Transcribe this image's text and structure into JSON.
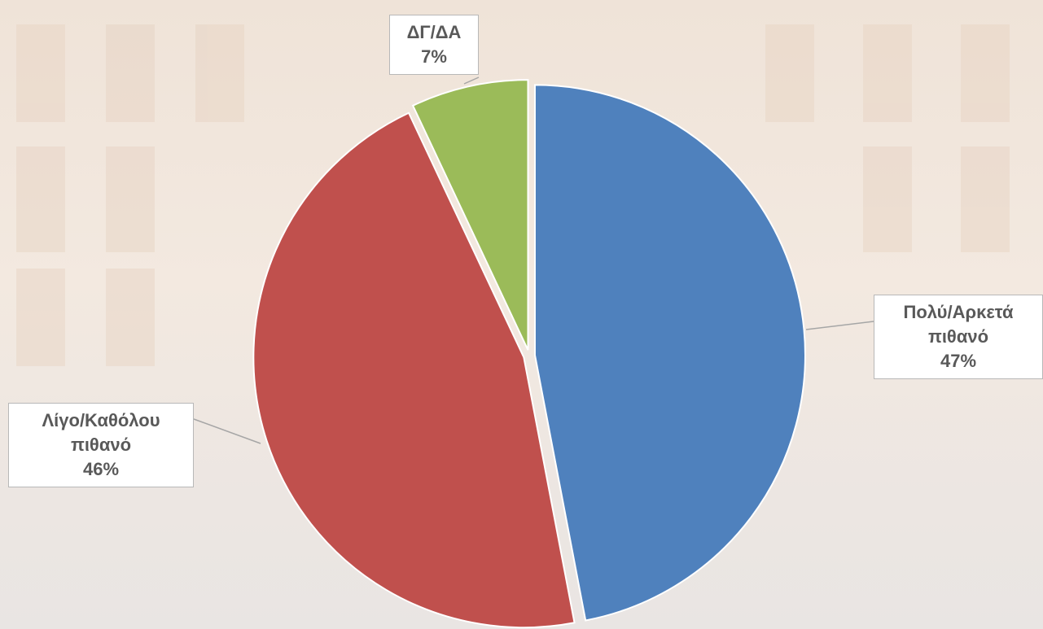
{
  "chart_data": {
    "type": "pie",
    "categories": [
      "Πολύ/Αρκετά πιθανό",
      "Λίγο/Καθόλου πιθανό",
      "ΔΓ/ΔΑ"
    ],
    "values": [
      47,
      46,
      7
    ],
    "value_labels": [
      "47%",
      "46%",
      "7%"
    ],
    "colors": [
      "#4f81bd",
      "#c0504d",
      "#9bbb59"
    ]
  }
}
